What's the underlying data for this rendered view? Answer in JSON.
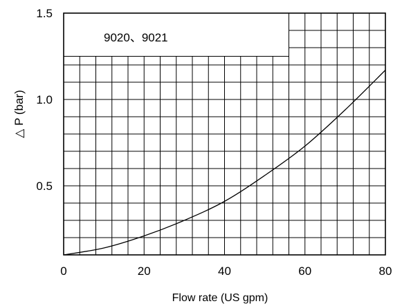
{
  "chart_data": {
    "type": "line",
    "title": "",
    "subtitle": "",
    "annotation": "9020、9021",
    "xlabel": "Flow rate (US gpm)",
    "ylabel": "△ P (bar)",
    "xlim": [
      0,
      80
    ],
    "ylim": [
      0.1,
      1.5
    ],
    "x_ticks": [
      "0",
      "20",
      "40",
      "60",
      "80"
    ],
    "y_ticks": [
      "0.5",
      "1.0",
      "1.5"
    ],
    "grid": true,
    "x_grid_step": 4,
    "y_grid_step": 0.1,
    "series": [
      {
        "x": [
          0,
          10,
          20,
          30,
          40,
          50,
          60,
          70,
          80
        ],
        "y": [
          0.1,
          0.14,
          0.21,
          0.3,
          0.41,
          0.56,
          0.73,
          0.94,
          1.17
        ]
      }
    ]
  }
}
